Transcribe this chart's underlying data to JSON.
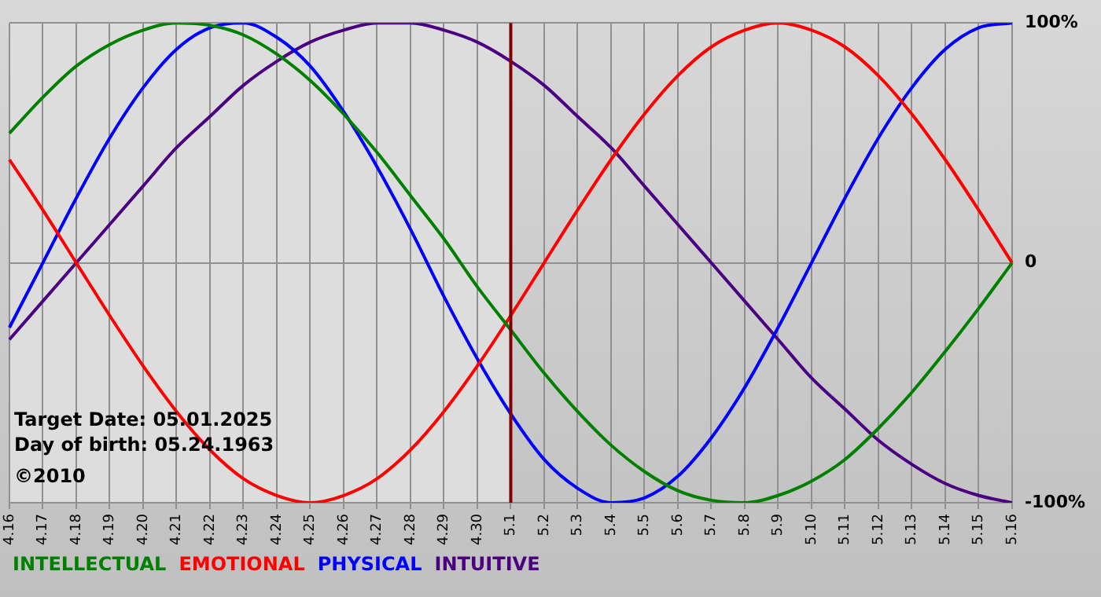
{
  "chart_data": {
    "type": "line",
    "categories": [
      "4.16",
      "4.17",
      "4.18",
      "4.19",
      "4.20",
      "4.21",
      "4.22",
      "4.23",
      "4.24",
      "4.25",
      "4.26",
      "4.27",
      "4.28",
      "4.29",
      "4.30",
      "5.1",
      "5.2",
      "5.3",
      "5.4",
      "5.5",
      "5.6",
      "5.7",
      "5.8",
      "5.9",
      "5.10",
      "5.11",
      "5.12",
      "5.13",
      "5.14",
      "5.15",
      "5.16"
    ],
    "series": [
      {
        "name": "INTELLECTUAL",
        "color": "#008000",
        "values": [
          54,
          69,
          82,
          91,
          97,
          100,
          99,
          95,
          87,
          76,
          62,
          46,
          28,
          10,
          -10,
          -28,
          -46,
          -62,
          -76,
          -87,
          -95,
          -99,
          -100,
          -97,
          -91,
          -82,
          -69,
          -54,
          -37,
          -19,
          0
        ]
      },
      {
        "name": "EMOTIONAL",
        "color": "#ff0000",
        "values": [
          43,
          22,
          0,
          -22,
          -43,
          -62,
          -78,
          -90,
          -97,
          -100,
          -97,
          -90,
          -78,
          -62,
          -43,
          -22,
          0,
          22,
          43,
          62,
          78,
          90,
          97,
          100,
          97,
          90,
          78,
          62,
          43,
          22,
          0
        ]
      },
      {
        "name": "PHYSICAL",
        "color": "#0000ff",
        "values": [
          -27,
          0,
          27,
          52,
          73,
          89,
          98,
          100,
          94,
          82,
          63,
          40,
          14,
          -14,
          -40,
          -63,
          -82,
          -94,
          -100,
          -98,
          -89,
          -73,
          -52,
          -27,
          0,
          27,
          52,
          73,
          89,
          98,
          100
        ]
      },
      {
        "name": "INTUITIVE",
        "color": "#4b0082",
        "values": [
          -32,
          -16,
          0,
          16,
          32,
          48,
          61,
          74,
          84,
          92,
          97,
          100,
          100,
          97,
          92,
          84,
          74,
          61,
          48,
          32,
          16,
          0,
          -16,
          -32,
          -48,
          -61,
          -74,
          -84,
          -92,
          -97,
          -100
        ]
      }
    ],
    "ylim": [
      -100,
      100
    ],
    "yticks": [
      {
        "value": 100,
        "label": "100%"
      },
      {
        "value": 0,
        "label": "0"
      },
      {
        "value": -100,
        "label": "-100%"
      }
    ],
    "grid": true,
    "legend": "bottom",
    "marker": "none",
    "line_style": "solid",
    "ref_lines": [
      {
        "axis": "x",
        "value": "5.1",
        "color": "#800000"
      }
    ],
    "bands": [
      {
        "axis": "x",
        "from": "4.16",
        "to": "5.1",
        "color": "#dddddd"
      }
    ],
    "annotations": [
      "Target Date: 05.01.2025",
      "Day of birth: 05.24.1963",
      "©2010"
    ]
  }
}
